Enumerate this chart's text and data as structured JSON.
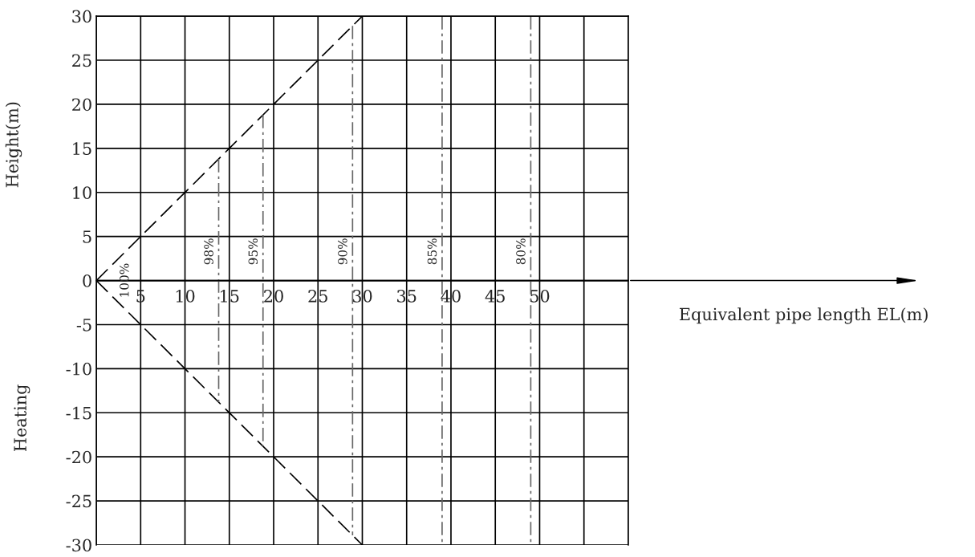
{
  "chart_data": {
    "type": "line",
    "xlabel": "Equivalent pipe length EL(m)",
    "ylabel": "Height(m)",
    "series": [
      {
        "x": [
          0,
          30
        ],
        "values": [
          0,
          30
        ],
        "color": "#000000",
        "line_style": "dashed"
      },
      {
        "x": [
          0,
          30
        ],
        "values": [
          0,
          -30
        ],
        "color": "#000000",
        "line_style": "dashed"
      },
      {
        "x": [
          13.8,
          13.8
        ],
        "values": [
          13.8,
          -13.8
        ],
        "color": "#666666",
        "line_style": "dashdot"
      },
      {
        "x": [
          18.8,
          18.8
        ],
        "values": [
          18.8,
          -18.8
        ],
        "color": "#666666",
        "line_style": "dashdot"
      },
      {
        "x": [
          28.9,
          28.9
        ],
        "values": [
          28.9,
          -28.9
        ],
        "color": "#666666",
        "line_style": "dashdot"
      },
      {
        "x": [
          39,
          39
        ],
        "values": [
          30,
          -30
        ],
        "color": "#666666",
        "line_style": "dashdot"
      },
      {
        "x": [
          49,
          49
        ],
        "values": [
          30,
          -30
        ],
        "color": "#666666",
        "line_style": "dashdot"
      }
    ],
    "annotations": [
      "Heating",
      {
        "text": "100%",
        "x": 0,
        "y": 0
      },
      {
        "text": "98%",
        "x": 13.8,
        "y": 3.3
      },
      {
        "text": "95%",
        "x": 18.8,
        "y": 3.3
      },
      {
        "text": "90%",
        "x": 28.9,
        "y": 3.3
      },
      {
        "text": "85%",
        "x": 39,
        "y": 3.3
      },
      {
        "text": "80%",
        "x": 49,
        "y": 3.3
      }
    ],
    "xlim": [
      0,
      60
    ],
    "ylim": [
      -30,
      30
    ],
    "xticks": [
      {
        "value": 0,
        "label": null
      },
      5,
      10,
      15,
      20,
      25,
      30,
      35,
      40,
      45,
      50,
      {
        "value": 55,
        "label": null
      },
      {
        "value": 60,
        "label": null
      }
    ],
    "yticks": [
      -30,
      -25,
      -20,
      -15,
      -10,
      -5,
      0,
      5,
      10,
      15,
      20,
      25,
      30
    ],
    "grid": true,
    "legend": false
  }
}
